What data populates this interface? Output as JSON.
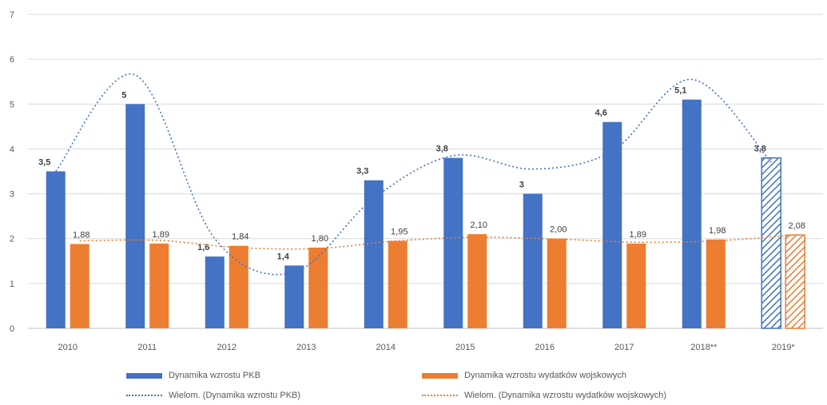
{
  "chart_data": {
    "type": "bar",
    "categories": [
      "2010",
      "2011",
      "2012",
      "2013",
      "2014",
      "2015",
      "2016",
      "2017",
      "2018**",
      "2019*"
    ],
    "ylim": [
      0,
      7
    ],
    "yticks": [
      "0",
      "1",
      "2",
      "3",
      "4",
      "5",
      "6",
      "7"
    ],
    "grid": true,
    "legend_position": "bottom",
    "series": [
      {
        "name": "Dynamika wzrostu PKB",
        "color": "#4472C4",
        "values": [
          3.5,
          5,
          1.6,
          1.4,
          3.3,
          3.8,
          3,
          4.6,
          5.1,
          3.8
        ],
        "labels": [
          "3,5",
          "5",
          "1,6",
          "1,4",
          "3,3",
          "3,8",
          "3",
          "4,6",
          "5,1",
          "3,8"
        ]
      },
      {
        "name": "Dynamika wzrostu wydatków wojskowych",
        "color": "#ED7D31",
        "values": [
          1.88,
          1.89,
          1.84,
          1.8,
          1.95,
          2.1,
          2.0,
          1.89,
          1.98,
          2.08
        ],
        "labels": [
          "1,88",
          "1,89",
          "1,84",
          "1,80",
          "1,95",
          "2,10",
          "2,00",
          "1,89",
          "1,98",
          "2,08"
        ]
      }
    ],
    "hatched_categories": [
      "2019*"
    ],
    "trendlines": [
      {
        "name": "Wielom. (Dynamika wzrostu PKB)",
        "color": "#4472C4",
        "style": "dotted"
      },
      {
        "name": "Wielom. (Dynamika wzrostu wydatków wojskowych)",
        "color": "#ED7D31",
        "style": "dotted"
      }
    ]
  }
}
